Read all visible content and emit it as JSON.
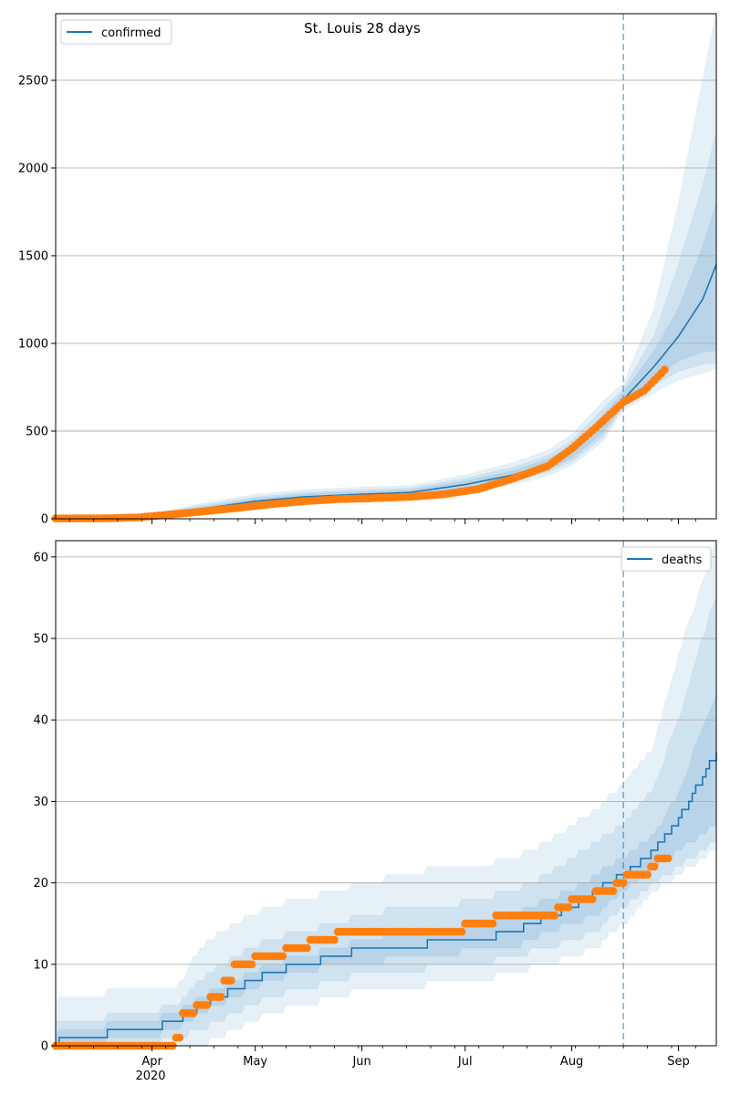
{
  "title": "St. Louis 28 days",
  "colors": {
    "model": "#1f77b4",
    "observed": "#ff7f0e",
    "band": "#1f77b4",
    "grid": "#b0b0b0",
    "cutoff": "#1f77b4"
  },
  "x_axis": {
    "ticks": [
      {
        "date": "2020-04-01",
        "label": "Apr"
      },
      {
        "date": "2020-05-01",
        "label": "May"
      },
      {
        "date": "2020-06-01",
        "label": "Jun"
      },
      {
        "date": "2020-07-01",
        "label": "Jul"
      },
      {
        "date": "2020-08-01",
        "label": "Aug"
      },
      {
        "date": "2020-09-01",
        "label": "Sep"
      }
    ],
    "year_label": "2020",
    "range": [
      "2020-03-04",
      "2020-09-12"
    ]
  },
  "cutoff_date": "2020-08-16",
  "chart_data": [
    {
      "type": "line",
      "name": "confirmed",
      "legend": "confirmed",
      "legend_position": "upper-left",
      "ylim": [
        0,
        2880
      ],
      "yticks": [
        0,
        500,
        1000,
        1500,
        2000,
        2500
      ],
      "grid": "y",
      "model": {
        "x": [
          "2020-03-04",
          "2020-03-20",
          "2020-04-01",
          "2020-04-15",
          "2020-05-01",
          "2020-05-15",
          "2020-06-01",
          "2020-06-15",
          "2020-07-01",
          "2020-07-15",
          "2020-07-25",
          "2020-08-01",
          "2020-08-10",
          "2020-08-16",
          "2020-08-25",
          "2020-09-01",
          "2020-09-08",
          "2020-09-12"
        ],
        "y": [
          5,
          6,
          15,
          55,
          100,
          125,
          140,
          150,
          195,
          250,
          310,
          380,
          540,
          680,
          870,
          1040,
          1250,
          1450
        ],
        "band_inner": {
          "lower": [
            3,
            4,
            12,
            45,
            85,
            110,
            125,
            135,
            175,
            225,
            280,
            345,
            490,
            650,
            800,
            900,
            950,
            960
          ],
          "upper": [
            7,
            8,
            20,
            65,
            115,
            140,
            155,
            165,
            215,
            275,
            340,
            415,
            590,
            720,
            960,
            1200,
            1550,
            1800
          ]
        },
        "band_mid": {
          "lower": [
            2,
            3,
            10,
            40,
            75,
            100,
            115,
            125,
            165,
            210,
            265,
            325,
            465,
            640,
            760,
            840,
            880,
            890
          ],
          "upper": [
            8,
            10,
            24,
            75,
            125,
            150,
            165,
            175,
            230,
            295,
            360,
            445,
            625,
            740,
            1050,
            1450,
            1900,
            2200
          ]
        },
        "band_outer": {
          "lower": [
            1,
            2,
            8,
            35,
            65,
            90,
            105,
            115,
            155,
            195,
            245,
            305,
            440,
            620,
            720,
            790,
            830,
            860
          ],
          "upper": [
            10,
            12,
            28,
            85,
            140,
            165,
            180,
            190,
            250,
            320,
            390,
            480,
            670,
            770,
            1200,
            1800,
            2500,
            2900
          ]
        }
      },
      "observed": {
        "x": [
          "2020-03-04",
          "2020-03-20",
          "2020-03-28",
          "2020-04-05",
          "2020-04-15",
          "2020-04-25",
          "2020-05-05",
          "2020-05-15",
          "2020-05-25",
          "2020-06-05",
          "2020-06-15",
          "2020-06-25",
          "2020-07-05",
          "2020-07-15",
          "2020-07-25",
          "2020-08-01",
          "2020-08-08",
          "2020-08-16",
          "2020-08-22",
          "2020-08-28"
        ],
        "y": [
          2,
          3,
          8,
          22,
          40,
          60,
          82,
          100,
          112,
          118,
          125,
          140,
          170,
          230,
          300,
          400,
          520,
          665,
          730,
          850
        ]
      }
    },
    {
      "type": "line",
      "name": "deaths",
      "legend": "deaths",
      "legend_position": "upper-right",
      "ylim": [
        0,
        62
      ],
      "yticks": [
        0,
        10,
        20,
        30,
        40,
        50,
        60
      ],
      "grid": "y",
      "model": {
        "x": [
          "2020-03-04",
          "2020-03-06",
          "2020-03-31",
          "2020-04-08",
          "2020-04-15",
          "2020-04-25",
          "2020-05-05",
          "2020-05-15",
          "2020-05-25",
          "2020-06-01",
          "2020-06-15",
          "2020-06-25",
          "2020-07-05",
          "2020-07-15",
          "2020-07-25",
          "2020-08-01",
          "2020-08-08",
          "2020-08-16",
          "2020-08-25",
          "2020-09-01",
          "2020-09-08",
          "2020-09-12"
        ],
        "y": [
          0,
          1,
          2,
          3,
          5,
          7,
          9,
          10,
          11,
          12,
          12,
          13,
          13,
          14,
          16,
          17,
          19,
          21,
          24,
          28,
          33,
          36
        ],
        "band_inner": {
          "lower": [
            0,
            0,
            1,
            2,
            4,
            6,
            8,
            9,
            10,
            10,
            11,
            11,
            12,
            12,
            14,
            15,
            16,
            19,
            22,
            24,
            26,
            27
          ],
          "upper": [
            1,
            2,
            3,
            4,
            6,
            8,
            10,
            11,
            12,
            13,
            14,
            14,
            15,
            16,
            18,
            19,
            21,
            23,
            26,
            31,
            39,
            43
          ]
        },
        "band_mid": {
          "lower": [
            0,
            0,
            0,
            1,
            2,
            4,
            6,
            7,
            8,
            9,
            9,
            10,
            10,
            11,
            12,
            13,
            14,
            17,
            20,
            22,
            24,
            25
          ],
          "upper": [
            3,
            3,
            4,
            5,
            8,
            11,
            13,
            14,
            15,
            16,
            17,
            17,
            18,
            19,
            21,
            23,
            25,
            27,
            32,
            40,
            50,
            55
          ]
        },
        "band_outer": {
          "lower": [
            0,
            0,
            0,
            0,
            0,
            2,
            4,
            5,
            6,
            7,
            7,
            8,
            8,
            9,
            10,
            11,
            12,
            15,
            19,
            21,
            23,
            24
          ],
          "upper": [
            5,
            6,
            7,
            7,
            12,
            15,
            17,
            18,
            19,
            20,
            21,
            22,
            22,
            23,
            25,
            27,
            29,
            32,
            37,
            48,
            57,
            62
          ]
        }
      },
      "observed": {
        "x": [
          "2020-03-04",
          "2020-04-08",
          "2020-04-10",
          "2020-04-14",
          "2020-04-18",
          "2020-04-22",
          "2020-04-25",
          "2020-05-01",
          "2020-05-10",
          "2020-05-17",
          "2020-05-25",
          "2020-06-15",
          "2020-07-01",
          "2020-07-10",
          "2020-07-20",
          "2020-07-28",
          "2020-08-01",
          "2020-08-08",
          "2020-08-14",
          "2020-08-17",
          "2020-08-24",
          "2020-08-26",
          "2020-08-29"
        ],
        "y": [
          0,
          1,
          4,
          5,
          6,
          8,
          10,
          11,
          12,
          13,
          14,
          14,
          15,
          16,
          16,
          17,
          18,
          19,
          20,
          21,
          22,
          23,
          23
        ]
      }
    }
  ]
}
